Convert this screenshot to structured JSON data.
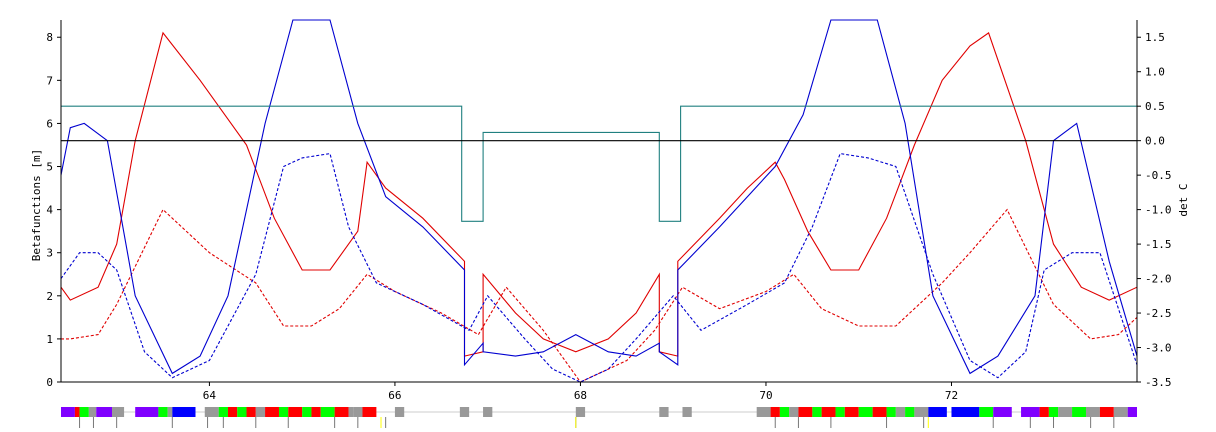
{
  "chart_data": {
    "type": "line",
    "title": "",
    "xlabel": "",
    "ylabel_left": "Betafunctions [m]",
    "ylabel_right": "det C",
    "xlim": [
      62.4,
      74.0
    ],
    "ylim_left": [
      0,
      8.4
    ],
    "ylim_right": [
      -3.5,
      1.75
    ],
    "x_ticks": [
      "64",
      "66",
      "68",
      "70",
      "72"
    ],
    "y_left_ticks": [
      "0",
      "1",
      "2",
      "3",
      "4",
      "5",
      "6",
      "7",
      "8"
    ],
    "y_right_ticks": [
      "1.5",
      "1.0",
      "0.5",
      "0.0",
      "-0.5",
      "-1.0",
      "-1.5",
      "-2.0",
      "-2.5",
      "-3.0",
      "-3.5"
    ],
    "grid": false,
    "colors": {
      "beta_x": "#e00000",
      "beta_y": "#0000d0",
      "det_c": "#208080",
      "zero_line": "#000000"
    },
    "series": [
      {
        "axis": "left",
        "color": "#e00000",
        "style": "solid",
        "x": [
          62.4,
          62.5,
          62.8,
          63.0,
          63.2,
          63.5,
          63.9,
          64.4,
          64.7,
          65.0,
          65.3,
          65.6,
          65.7,
          65.9,
          66.3,
          66.75,
          66.75,
          66.95,
          66.95,
          67.3,
          67.6,
          67.95,
          68.3,
          68.6,
          68.85,
          68.85,
          69.05,
          69.05,
          69.5,
          69.8,
          70.1,
          70.2,
          70.45,
          70.7,
          71.0,
          71.3,
          71.6,
          71.9,
          72.2,
          72.4,
          72.8,
          73.1,
          73.4,
          73.7,
          74.0
        ],
        "y": [
          2.2,
          1.9,
          2.2,
          3.2,
          5.6,
          8.1,
          7.0,
          5.5,
          3.8,
          2.6,
          2.6,
          3.5,
          5.1,
          4.5,
          3.8,
          2.8,
          0.6,
          0.7,
          2.5,
          1.6,
          1.0,
          0.7,
          1.0,
          1.6,
          2.5,
          0.7,
          0.6,
          2.8,
          3.8,
          4.5,
          5.1,
          4.7,
          3.5,
          2.6,
          2.6,
          3.8,
          5.5,
          7.0,
          7.8,
          8.1,
          5.6,
          3.2,
          2.2,
          1.9,
          2.2
        ]
      },
      {
        "axis": "left",
        "color": "#e00000",
        "style": "dashed",
        "x": [
          62.4,
          62.5,
          62.8,
          63.0,
          63.5,
          64.0,
          64.5,
          64.8,
          65.1,
          65.4,
          65.7,
          66.0,
          66.5,
          66.9,
          67.2,
          67.6,
          68.0,
          68.3,
          68.5,
          68.8,
          69.1,
          69.5,
          70.0,
          70.3,
          70.6,
          71.0,
          71.4,
          71.9,
          72.2,
          72.6,
          73.1,
          73.5,
          73.8,
          74.0
        ],
        "y": [
          1.0,
          1.0,
          1.1,
          1.8,
          4.0,
          3.0,
          2.3,
          1.3,
          1.3,
          1.7,
          2.5,
          2.1,
          1.6,
          1.1,
          2.2,
          1.2,
          0.0,
          0.3,
          0.5,
          1.2,
          2.2,
          1.7,
          2.1,
          2.5,
          1.7,
          1.3,
          1.3,
          2.3,
          3.0,
          4.0,
          1.8,
          1.0,
          1.1,
          1.5
        ]
      },
      {
        "axis": "left",
        "color": "#0000d0",
        "style": "solid",
        "x": [
          62.4,
          62.5,
          62.65,
          62.9,
          63.2,
          63.6,
          63.9,
          64.2,
          64.6,
          64.9,
          65.1,
          65.3,
          65.6,
          65.9,
          66.3,
          66.75,
          66.75,
          66.95,
          66.95,
          67.3,
          67.6,
          67.95,
          68.3,
          68.6,
          68.85,
          68.85,
          69.05,
          69.05,
          69.5,
          69.8,
          70.1,
          70.4,
          70.7,
          71.0,
          71.2,
          71.5,
          71.8,
          72.2,
          72.5,
          72.9,
          73.1,
          73.35,
          73.7,
          74.0
        ],
        "y": [
          4.8,
          5.9,
          6.0,
          5.6,
          2.0,
          0.2,
          0.6,
          2.0,
          6.0,
          8.4,
          8.4,
          8.4,
          6.0,
          4.3,
          3.6,
          2.6,
          0.4,
          0.9,
          0.7,
          0.6,
          0.7,
          1.1,
          0.7,
          0.6,
          0.9,
          0.7,
          0.4,
          2.6,
          3.6,
          4.3,
          5.0,
          6.2,
          8.4,
          8.4,
          8.4,
          6.0,
          2.0,
          0.2,
          0.6,
          2.0,
          5.6,
          6.0,
          2.8,
          0.6
        ]
      },
      {
        "axis": "left",
        "color": "#0000d0",
        "style": "dashed",
        "x": [
          62.4,
          62.6,
          62.8,
          63.0,
          63.3,
          63.6,
          64.0,
          64.5,
          64.8,
          65.0,
          65.3,
          65.5,
          65.8,
          66.3,
          66.8,
          67.0,
          67.4,
          67.7,
          68.0,
          68.3,
          68.6,
          69.0,
          69.3,
          69.8,
          70.2,
          70.5,
          70.8,
          71.1,
          71.4,
          71.8,
          72.2,
          72.5,
          72.8,
          73.0,
          73.3,
          73.6,
          74.0
        ],
        "y": [
          2.4,
          3.0,
          3.0,
          2.6,
          0.7,
          0.1,
          0.5,
          2.5,
          5.0,
          5.2,
          5.3,
          3.6,
          2.3,
          1.8,
          1.2,
          2.0,
          1.0,
          0.3,
          0.0,
          0.3,
          1.0,
          2.0,
          1.2,
          1.8,
          2.3,
          3.6,
          5.3,
          5.2,
          5.0,
          2.5,
          0.5,
          0.1,
          0.7,
          2.6,
          3.0,
          3.0,
          0.4
        ]
      },
      {
        "axis": "right",
        "color": "#208080",
        "style": "solid",
        "x": [
          62.4,
          66.72,
          66.72,
          66.95,
          66.95,
          68.85,
          68.85,
          69.08,
          69.08,
          74.0
        ],
        "y": [
          0.5,
          0.5,
          -1.17,
          -1.17,
          0.12,
          0.12,
          -1.17,
          -1.17,
          0.5,
          0.5
        ]
      },
      {
        "axis": "right",
        "color": "#000000",
        "style": "solid",
        "x": [
          62.4,
          74.0
        ],
        "y": [
          0.0,
          0.0
        ]
      }
    ],
    "lattice": {
      "colors": {
        "purple": "#8000ff",
        "red": "#ff0000",
        "green": "#00ff00",
        "blue": "#0000ff",
        "gray": "#999999",
        "marker": "#ffff00"
      },
      "elements": [
        {
          "x0": 62.4,
          "x1": 62.55,
          "c": "purple"
        },
        {
          "x0": 62.55,
          "x1": 62.6,
          "c": "red"
        },
        {
          "x0": 62.6,
          "x1": 62.7,
          "c": "green"
        },
        {
          "x0": 62.7,
          "x1": 62.78,
          "c": "gray"
        },
        {
          "x0": 62.78,
          "x1": 62.95,
          "c": "purple"
        },
        {
          "x0": 62.95,
          "x1": 63.08,
          "c": "gray"
        },
        {
          "x0": 63.2,
          "x1": 63.45,
          "c": "purple"
        },
        {
          "x0": 63.45,
          "x1": 63.55,
          "c": "green"
        },
        {
          "x0": 63.55,
          "x1": 63.6,
          "c": "gray"
        },
        {
          "x0": 63.6,
          "x1": 63.85,
          "c": "blue"
        },
        {
          "x0": 63.95,
          "x1": 64.1,
          "c": "gray"
        },
        {
          "x0": 64.1,
          "x1": 64.2,
          "c": "green"
        },
        {
          "x0": 64.2,
          "x1": 64.3,
          "c": "red"
        },
        {
          "x0": 64.3,
          "x1": 64.4,
          "c": "green"
        },
        {
          "x0": 64.4,
          "x1": 64.5,
          "c": "red"
        },
        {
          "x0": 64.5,
          "x1": 64.6,
          "c": "gray"
        },
        {
          "x0": 64.6,
          "x1": 64.75,
          "c": "red"
        },
        {
          "x0": 64.75,
          "x1": 64.85,
          "c": "green"
        },
        {
          "x0": 64.85,
          "x1": 65.0,
          "c": "red"
        },
        {
          "x0": 65.0,
          "x1": 65.1,
          "c": "green"
        },
        {
          "x0": 65.1,
          "x1": 65.2,
          "c": "red"
        },
        {
          "x0": 65.2,
          "x1": 65.35,
          "c": "green"
        },
        {
          "x0": 65.35,
          "x1": 65.5,
          "c": "red"
        },
        {
          "x0": 65.5,
          "x1": 65.55,
          "c": "gray"
        },
        {
          "x0": 65.55,
          "x1": 65.65,
          "c": "gray"
        },
        {
          "x0": 65.65,
          "x1": 65.8,
          "c": "red"
        },
        {
          "x0": 66.0,
          "x1": 66.1,
          "c": "gray"
        },
        {
          "x0": 66.7,
          "x1": 66.8,
          "c": "gray"
        },
        {
          "x0": 66.95,
          "x1": 67.05,
          "c": "gray"
        },
        {
          "x0": 67.95,
          "x1": 68.05,
          "c": "gray"
        },
        {
          "x0": 68.85,
          "x1": 68.95,
          "c": "gray"
        },
        {
          "x0": 69.1,
          "x1": 69.2,
          "c": "gray"
        },
        {
          "x0": 69.9,
          "x1": 70.05,
          "c": "gray"
        },
        {
          "x0": 70.05,
          "x1": 70.15,
          "c": "red"
        },
        {
          "x0": 70.15,
          "x1": 70.25,
          "c": "green"
        },
        {
          "x0": 70.25,
          "x1": 70.35,
          "c": "gray"
        },
        {
          "x0": 70.35,
          "x1": 70.5,
          "c": "red"
        },
        {
          "x0": 70.5,
          "x1": 70.6,
          "c": "green"
        },
        {
          "x0": 70.6,
          "x1": 70.75,
          "c": "red"
        },
        {
          "x0": 70.75,
          "x1": 70.85,
          "c": "green"
        },
        {
          "x0": 70.85,
          "x1": 71.0,
          "c": "red"
        },
        {
          "x0": 71.0,
          "x1": 71.15,
          "c": "green"
        },
        {
          "x0": 71.15,
          "x1": 71.3,
          "c": "red"
        },
        {
          "x0": 71.3,
          "x1": 71.4,
          "c": "green"
        },
        {
          "x0": 71.4,
          "x1": 71.5,
          "c": "gray"
        },
        {
          "x0": 71.5,
          "x1": 71.6,
          "c": "green"
        },
        {
          "x0": 71.6,
          "x1": 71.75,
          "c": "gray"
        },
        {
          "x0": 71.75,
          "x1": 71.95,
          "c": "blue"
        },
        {
          "x0": 72.0,
          "x1": 72.3,
          "c": "blue"
        },
        {
          "x0": 72.3,
          "x1": 72.45,
          "c": "green"
        },
        {
          "x0": 72.45,
          "x1": 72.65,
          "c": "purple"
        },
        {
          "x0": 72.75,
          "x1": 72.95,
          "c": "purple"
        },
        {
          "x0": 72.95,
          "x1": 73.05,
          "c": "red"
        },
        {
          "x0": 73.05,
          "x1": 73.15,
          "c": "green"
        },
        {
          "x0": 73.15,
          "x1": 73.3,
          "c": "gray"
        },
        {
          "x0": 73.3,
          "x1": 73.45,
          "c": "green"
        },
        {
          "x0": 73.45,
          "x1": 73.6,
          "c": "gray"
        },
        {
          "x0": 73.6,
          "x1": 73.75,
          "c": "red"
        },
        {
          "x0": 73.75,
          "x1": 73.9,
          "c": "gray"
        },
        {
          "x0": 73.9,
          "x1": 74.0,
          "c": "purple"
        }
      ],
      "markers": [
        62.6,
        62.75,
        63.0,
        63.6,
        63.98,
        64.15,
        64.5,
        64.85,
        65.35,
        65.6,
        65.9,
        67.95,
        70.1,
        70.35,
        70.7,
        71.3,
        71.7,
        72.45,
        72.85,
        73.1,
        73.5,
        73.75
      ],
      "yellow_markers": [
        65.85,
        67.95,
        71.75
      ]
    }
  }
}
